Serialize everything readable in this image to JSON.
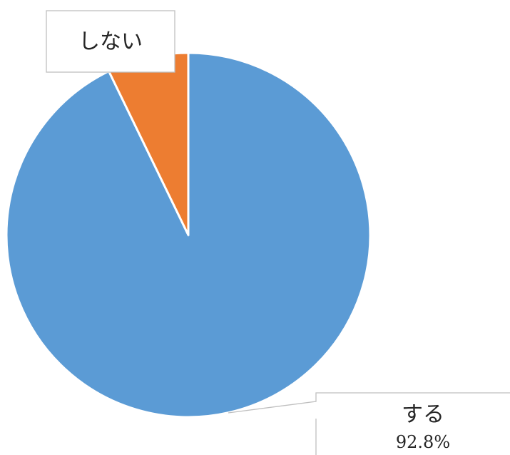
{
  "chart_data": {
    "type": "pie",
    "categories": [
      "する",
      "しない"
    ],
    "values": [
      92.8,
      7.2
    ],
    "colors": [
      "#5b9bd5",
      "#ed7d31"
    ],
    "slice_border_color": "#ffffff",
    "labels": [
      {
        "category": "する",
        "value_text": "92.8%"
      },
      {
        "category": "しない",
        "value_text": ""
      }
    ],
    "start_angle_deg": 0,
    "direction": "clockwise",
    "title": ""
  }
}
